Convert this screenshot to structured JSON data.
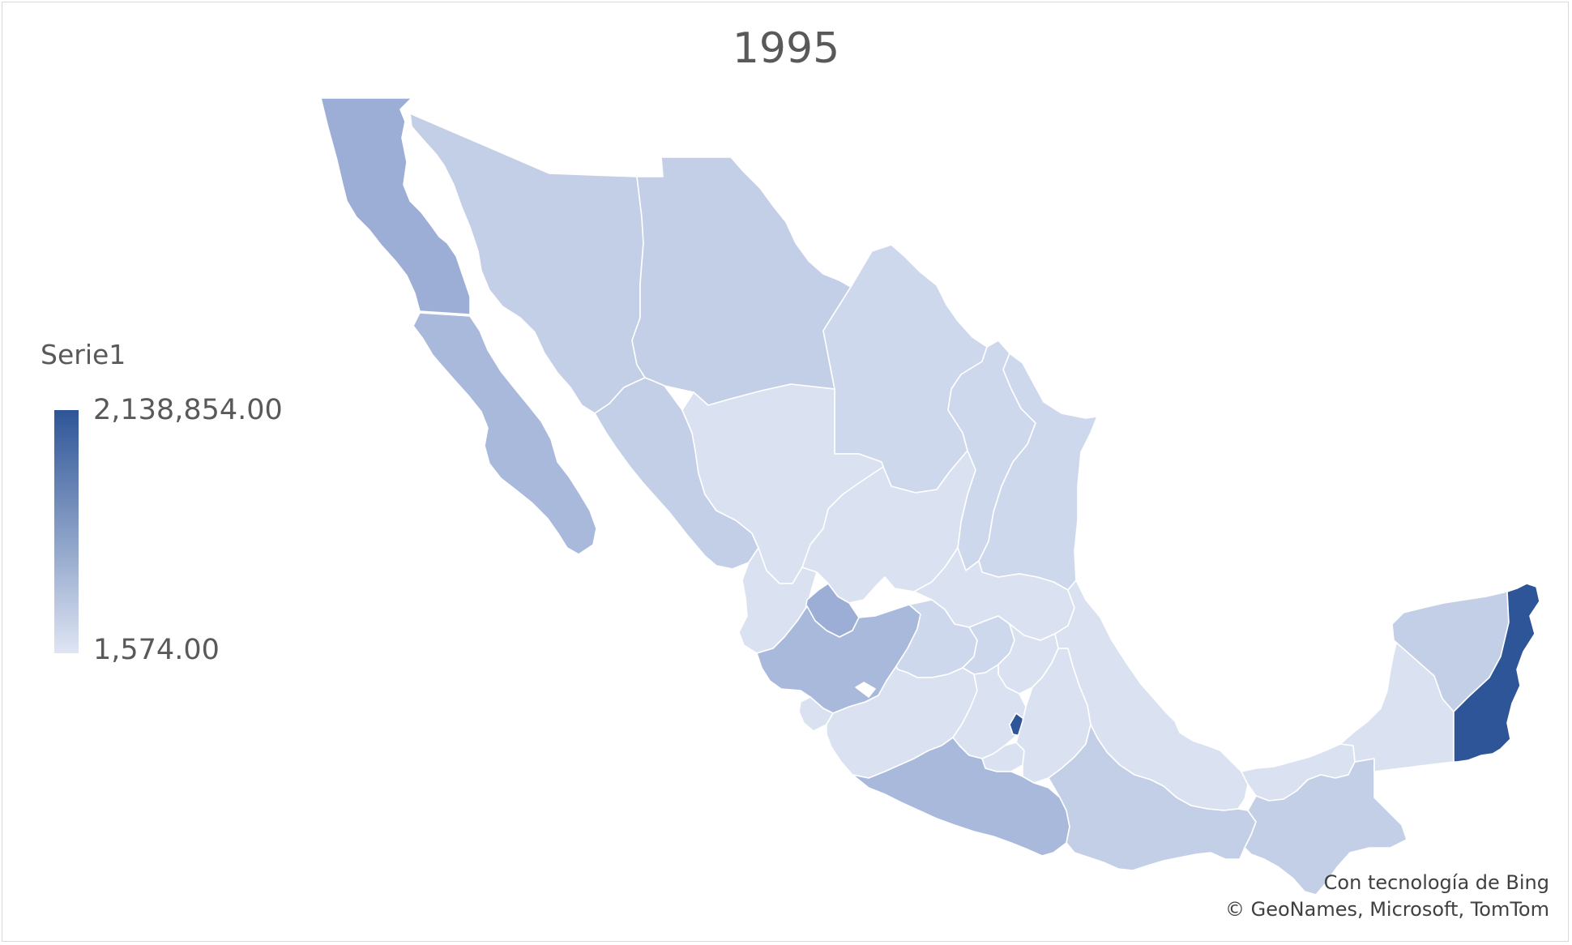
{
  "title": "1995",
  "legend": {
    "title": "Serie1",
    "max_label": "2,138,854.00",
    "min_label": "1,574.00",
    "color_max": "#2e5597",
    "color_min": "#dfe5f3"
  },
  "credits": {
    "line1": "Con tecnología de Bing",
    "line2": "© GeoNames, Microsoft, TomTom"
  },
  "colors": {
    "very_light": "#dae1f1",
    "light": "#ced8ec",
    "light_medium": "#c3cfe7",
    "medium": "#a8b9dc",
    "medium_dark": "#9daed6",
    "dark": "#2e5597"
  },
  "map": {
    "type": "choropleth",
    "region": "Mexico",
    "states": [
      {
        "name": "baja-california",
        "shade": "medium_dark"
      },
      {
        "name": "baja-california-sur",
        "shade": "medium"
      },
      {
        "name": "sonora",
        "shade": "light_medium"
      },
      {
        "name": "chihuahua",
        "shade": "light_medium"
      },
      {
        "name": "coahuila",
        "shade": "light"
      },
      {
        "name": "nuevo-leon",
        "shade": "light"
      },
      {
        "name": "tamaulipas",
        "shade": "light"
      },
      {
        "name": "sinaloa",
        "shade": "light_medium"
      },
      {
        "name": "durango",
        "shade": "very_light"
      },
      {
        "name": "zacatecas",
        "shade": "very_light"
      },
      {
        "name": "san-luis-potosi",
        "shade": "very_light"
      },
      {
        "name": "nayarit",
        "shade": "very_light"
      },
      {
        "name": "aguascalientes",
        "shade": "medium_dark"
      },
      {
        "name": "jalisco",
        "shade": "medium"
      },
      {
        "name": "colima",
        "shade": "very_light"
      },
      {
        "name": "guanajuato",
        "shade": "light"
      },
      {
        "name": "queretaro",
        "shade": "light"
      },
      {
        "name": "hidalgo",
        "shade": "very_light"
      },
      {
        "name": "michoacan",
        "shade": "very_light"
      },
      {
        "name": "estado-de-mexico",
        "shade": "very_light"
      },
      {
        "name": "ciudad-de-mexico",
        "shade": "dark"
      },
      {
        "name": "morelos",
        "shade": "very_light"
      },
      {
        "name": "tlaxcala",
        "shade": "very_light"
      },
      {
        "name": "puebla",
        "shade": "very_light"
      },
      {
        "name": "veracruz",
        "shade": "very_light"
      },
      {
        "name": "guerrero",
        "shade": "medium"
      },
      {
        "name": "oaxaca",
        "shade": "light_medium"
      },
      {
        "name": "tabasco",
        "shade": "very_light"
      },
      {
        "name": "chiapas",
        "shade": "light_medium"
      },
      {
        "name": "campeche",
        "shade": "very_light"
      },
      {
        "name": "yucatan",
        "shade": "light_medium"
      },
      {
        "name": "quintana-roo",
        "shade": "dark"
      }
    ]
  }
}
